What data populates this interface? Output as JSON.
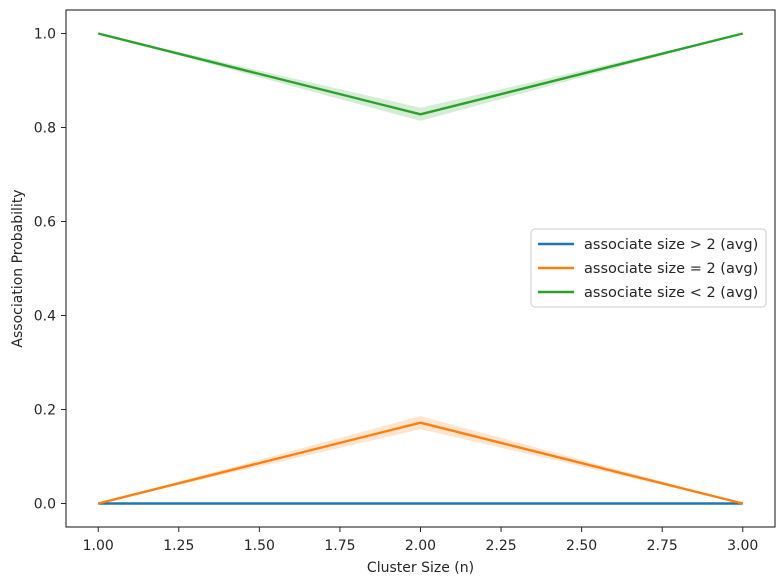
{
  "chart_data": {
    "type": "line",
    "xlabel": "Cluster Size (n)",
    "ylabel": "Association Probability",
    "xlim": [
      0.9,
      3.1
    ],
    "ylim": [
      -0.05,
      1.05
    ],
    "x": [
      1.0,
      2.0,
      3.0
    ],
    "xticks": [
      1.0,
      1.25,
      1.5,
      1.75,
      2.0,
      2.25,
      2.5,
      2.75,
      3.0
    ],
    "xtick_labels": [
      "1.00",
      "1.25",
      "1.50",
      "1.75",
      "2.00",
      "2.25",
      "2.50",
      "2.75",
      "3.00"
    ],
    "yticks": [
      0.0,
      0.2,
      0.4,
      0.6,
      0.8,
      1.0
    ],
    "ytick_labels": [
      "0.0",
      "0.2",
      "0.4",
      "0.6",
      "0.8",
      "1.0"
    ],
    "grid": false,
    "legend_position": "center-right",
    "series": [
      {
        "name": "associate size > 2 (avg)",
        "color": "#1f77b4",
        "values": [
          0.0,
          0.0,
          0.0
        ],
        "lower": [
          0.0,
          0.0,
          0.0
        ],
        "upper": [
          0.0,
          0.0,
          0.0
        ]
      },
      {
        "name": "associate size = 2 (avg)",
        "color": "#ff7f0e",
        "values": [
          0.0,
          0.172,
          0.0
        ],
        "lower": [
          0.0,
          0.158,
          0.0
        ],
        "upper": [
          0.0,
          0.186,
          0.0
        ]
      },
      {
        "name": "associate size < 2 (avg)",
        "color": "#2ca02c",
        "values": [
          1.0,
          0.828,
          1.0
        ],
        "lower": [
          1.0,
          0.814,
          1.0
        ],
        "upper": [
          1.0,
          0.842,
          1.0
        ]
      }
    ]
  }
}
